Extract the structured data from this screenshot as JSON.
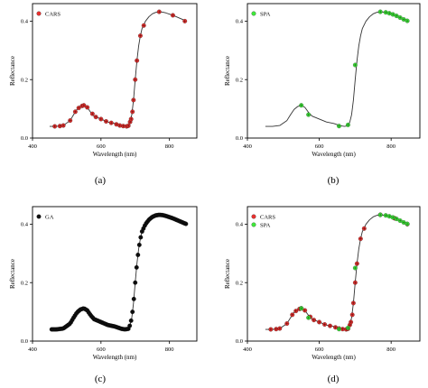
{
  "chart_data": [
    {
      "type": "line",
      "panel_label": "(a)",
      "xlabel": "Wavelength (nm)",
      "ylabel": "Reflectance",
      "xlim": [
        400,
        880
      ],
      "ylim": [
        0,
        0.46
      ],
      "x_ticks": [
        400,
        600,
        800
      ],
      "y_ticks": [
        0.0,
        0.2,
        0.4
      ],
      "grid": false,
      "legend_position": "top-left",
      "curve": {
        "x": [
          450,
          470,
          490,
          510,
          520,
          530,
          540,
          550,
          560,
          570,
          580,
          600,
          620,
          640,
          660,
          670,
          680,
          685,
          690,
          695,
          700,
          705,
          710,
          715,
          720,
          730,
          740,
          750,
          760,
          770,
          780,
          790,
          800,
          810,
          820,
          830,
          840,
          850
        ],
        "y": [
          0.04,
          0.04,
          0.043,
          0.06,
          0.08,
          0.098,
          0.108,
          0.112,
          0.105,
          0.088,
          0.075,
          0.065,
          0.055,
          0.05,
          0.042,
          0.04,
          0.042,
          0.055,
          0.08,
          0.13,
          0.2,
          0.265,
          0.315,
          0.35,
          0.375,
          0.4,
          0.415,
          0.425,
          0.43,
          0.432,
          0.431,
          0.428,
          0.424,
          0.42,
          0.415,
          0.41,
          0.405,
          0.4
        ]
      },
      "series": [
        {
          "name": "CARS",
          "color": "#e8312f",
          "x": [
            465,
            480,
            490,
            510,
            525,
            535,
            545,
            550,
            560,
            575,
            585,
            600,
            615,
            630,
            645,
            655,
            665,
            675,
            680,
            685,
            688,
            692,
            695,
            700,
            705,
            715,
            725,
            770,
            810,
            845
          ],
          "y": [
            0.04,
            0.041,
            0.043,
            0.06,
            0.09,
            0.103,
            0.11,
            0.112,
            0.105,
            0.083,
            0.072,
            0.065,
            0.057,
            0.052,
            0.047,
            0.043,
            0.041,
            0.04,
            0.042,
            0.055,
            0.065,
            0.09,
            0.13,
            0.2,
            0.265,
            0.35,
            0.385,
            0.432,
            0.42,
            0.4
          ]
        }
      ]
    },
    {
      "type": "line",
      "panel_label": "(b)",
      "xlabel": "Wavelength (nm)",
      "ylabel": "Reflectance",
      "xlim": [
        400,
        880
      ],
      "ylim": [
        0,
        0.46
      ],
      "x_ticks": [
        400,
        600,
        800
      ],
      "y_ticks": [
        0.0,
        0.2,
        0.4
      ],
      "grid": false,
      "legend_position": "top-left",
      "curve": {
        "x": [
          450,
          470,
          490,
          510,
          520,
          530,
          540,
          550,
          560,
          570,
          580,
          600,
          620,
          640,
          660,
          670,
          680,
          685,
          690,
          695,
          700,
          705,
          710,
          715,
          720,
          730,
          740,
          750,
          760,
          770,
          780,
          790,
          800,
          810,
          820,
          830,
          840,
          850
        ],
        "y": [
          0.04,
          0.04,
          0.043,
          0.06,
          0.08,
          0.098,
          0.108,
          0.112,
          0.105,
          0.088,
          0.075,
          0.065,
          0.055,
          0.05,
          0.042,
          0.04,
          0.042,
          0.055,
          0.08,
          0.13,
          0.2,
          0.265,
          0.315,
          0.35,
          0.375,
          0.4,
          0.415,
          0.425,
          0.43,
          0.432,
          0.431,
          0.428,
          0.424,
          0.42,
          0.415,
          0.41,
          0.405,
          0.4
        ]
      },
      "series": [
        {
          "name": "SPA",
          "color": "#3fe83a",
          "x": [
            550,
            570,
            655,
            680,
            700,
            770,
            785,
            795,
            805,
            815,
            825,
            835,
            845
          ],
          "y": [
            0.112,
            0.08,
            0.041,
            0.045,
            0.25,
            0.432,
            0.43,
            0.427,
            0.423,
            0.418,
            0.412,
            0.406,
            0.401
          ]
        }
      ]
    },
    {
      "type": "line",
      "panel_label": "(c)",
      "xlabel": "Wavelength (nm)",
      "ylabel": "Reflectance",
      "xlim": [
        400,
        880
      ],
      "ylim": [
        0,
        0.46
      ],
      "x_ticks": [
        400,
        600,
        800
      ],
      "y_ticks": [
        0.0,
        0.2,
        0.4
      ],
      "grid": false,
      "legend_position": "top-left",
      "curve": {
        "x": [
          450,
          470,
          490,
          510,
          520,
          530,
          540,
          550,
          560,
          570,
          580,
          600,
          620,
          640,
          660,
          670,
          680,
          685,
          690,
          695,
          700,
          705,
          710,
          715,
          720,
          730,
          740,
          750,
          760,
          770,
          780,
          790,
          800,
          810,
          820,
          830,
          840,
          850
        ],
        "y": [
          0.04,
          0.04,
          0.043,
          0.06,
          0.08,
          0.098,
          0.108,
          0.112,
          0.105,
          0.088,
          0.075,
          0.065,
          0.055,
          0.05,
          0.042,
          0.04,
          0.042,
          0.055,
          0.08,
          0.13,
          0.2,
          0.265,
          0.315,
          0.35,
          0.375,
          0.4,
          0.415,
          0.425,
          0.43,
          0.432,
          0.431,
          0.428,
          0.424,
          0.42,
          0.415,
          0.41,
          0.405,
          0.4
        ]
      },
      "series": [
        {
          "name": "GA",
          "color": "#111111",
          "sampled_every_nm": 4,
          "x_range": [
            456,
            848
          ]
        }
      ]
    },
    {
      "type": "line",
      "panel_label": "(d)",
      "xlabel": "Wavelength (nm)",
      "ylabel": "Reflectance",
      "xlim": [
        400,
        880
      ],
      "ylim": [
        0,
        0.46
      ],
      "x_ticks": [
        400,
        600,
        800
      ],
      "y_ticks": [
        0.0,
        0.2,
        0.4
      ],
      "grid": false,
      "legend_position": "top-left",
      "curve": {
        "x": [
          450,
          470,
          490,
          510,
          520,
          530,
          540,
          550,
          560,
          570,
          580,
          600,
          620,
          640,
          660,
          670,
          680,
          685,
          690,
          695,
          700,
          705,
          710,
          715,
          720,
          730,
          740,
          750,
          760,
          770,
          780,
          790,
          800,
          810,
          820,
          830,
          840,
          850
        ],
        "y": [
          0.04,
          0.04,
          0.043,
          0.06,
          0.08,
          0.098,
          0.108,
          0.112,
          0.105,
          0.088,
          0.075,
          0.065,
          0.055,
          0.05,
          0.042,
          0.04,
          0.042,
          0.055,
          0.08,
          0.13,
          0.2,
          0.265,
          0.315,
          0.35,
          0.375,
          0.4,
          0.415,
          0.425,
          0.43,
          0.432,
          0.431,
          0.428,
          0.424,
          0.42,
          0.415,
          0.41,
          0.405,
          0.4
        ]
      },
      "series": [
        {
          "name": "CARS",
          "color": "#e8312f",
          "x": [
            465,
            480,
            490,
            510,
            525,
            535,
            545,
            550,
            560,
            575,
            585,
            600,
            615,
            630,
            645,
            655,
            665,
            675,
            680,
            685,
            688,
            692,
            695,
            700,
            705,
            715,
            725,
            770,
            810,
            845
          ],
          "y": [
            0.04,
            0.041,
            0.043,
            0.06,
            0.09,
            0.103,
            0.11,
            0.112,
            0.105,
            0.083,
            0.072,
            0.065,
            0.057,
            0.052,
            0.047,
            0.043,
            0.041,
            0.04,
            0.042,
            0.055,
            0.065,
            0.09,
            0.13,
            0.2,
            0.265,
            0.35,
            0.385,
            0.432,
            0.42,
            0.4
          ]
        },
        {
          "name": "SPA",
          "color": "#3fe83a",
          "x": [
            550,
            570,
            655,
            680,
            700,
            770,
            785,
            795,
            805,
            815,
            825,
            835,
            845
          ],
          "y": [
            0.112,
            0.08,
            0.041,
            0.045,
            0.25,
            0.432,
            0.43,
            0.427,
            0.423,
            0.418,
            0.412,
            0.406,
            0.401
          ]
        }
      ]
    }
  ]
}
